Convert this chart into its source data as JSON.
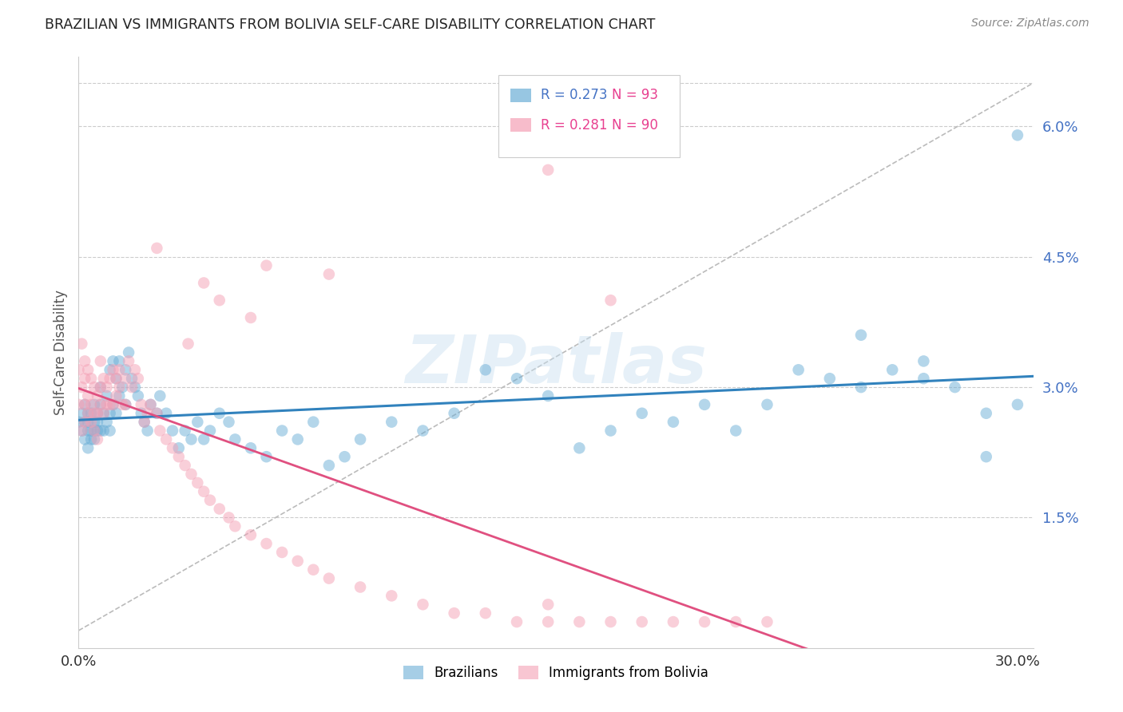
{
  "title": "BRAZILIAN VS IMMIGRANTS FROM BOLIVIA SELF-CARE DISABILITY CORRELATION CHART",
  "source": "Source: ZipAtlas.com",
  "ylabel": "Self-Care Disability",
  "legend_r1": "R = 0.273",
  "legend_n1": "N = 93",
  "legend_r2": "R = 0.281",
  "legend_n2": "N = 90",
  "legend_label1": "Brazilians",
  "legend_label2": "Immigrants from Bolivia",
  "color_blue": "#6baed6",
  "color_pink": "#f4a0b5",
  "color_blue_line": "#3182bd",
  "color_pink_line": "#e05080",
  "watermark": "ZIPatlas",
  "brazil_x": [
    0.0,
    0.001,
    0.001,
    0.002,
    0.002,
    0.002,
    0.003,
    0.003,
    0.003,
    0.003,
    0.004,
    0.004,
    0.004,
    0.005,
    0.005,
    0.005,
    0.005,
    0.006,
    0.006,
    0.006,
    0.007,
    0.007,
    0.007,
    0.008,
    0.008,
    0.009,
    0.009,
    0.01,
    0.01,
    0.01,
    0.011,
    0.011,
    0.012,
    0.012,
    0.013,
    0.013,
    0.014,
    0.015,
    0.015,
    0.016,
    0.017,
    0.018,
    0.019,
    0.02,
    0.021,
    0.022,
    0.023,
    0.025,
    0.026,
    0.028,
    0.03,
    0.032,
    0.034,
    0.036,
    0.038,
    0.04,
    0.042,
    0.045,
    0.048,
    0.05,
    0.055,
    0.06,
    0.065,
    0.07,
    0.075,
    0.08,
    0.085,
    0.09,
    0.1,
    0.11,
    0.12,
    0.13,
    0.14,
    0.15,
    0.16,
    0.17,
    0.18,
    0.19,
    0.2,
    0.21,
    0.22,
    0.23,
    0.24,
    0.25,
    0.26,
    0.27,
    0.28,
    0.29,
    0.3,
    0.25,
    0.27,
    0.29,
    0.3
  ],
  "brazil_y": [
    0.026,
    0.025,
    0.027,
    0.026,
    0.024,
    0.028,
    0.026,
    0.025,
    0.027,
    0.023,
    0.025,
    0.027,
    0.024,
    0.026,
    0.025,
    0.028,
    0.024,
    0.027,
    0.025,
    0.026,
    0.028,
    0.025,
    0.03,
    0.027,
    0.025,
    0.029,
    0.026,
    0.032,
    0.027,
    0.025,
    0.033,
    0.028,
    0.031,
    0.027,
    0.033,
    0.029,
    0.03,
    0.032,
    0.028,
    0.034,
    0.031,
    0.03,
    0.029,
    0.027,
    0.026,
    0.025,
    0.028,
    0.027,
    0.029,
    0.027,
    0.025,
    0.023,
    0.025,
    0.024,
    0.026,
    0.024,
    0.025,
    0.027,
    0.026,
    0.024,
    0.023,
    0.022,
    0.025,
    0.024,
    0.026,
    0.021,
    0.022,
    0.024,
    0.026,
    0.025,
    0.027,
    0.032,
    0.031,
    0.029,
    0.023,
    0.025,
    0.027,
    0.026,
    0.028,
    0.025,
    0.028,
    0.032,
    0.031,
    0.03,
    0.032,
    0.031,
    0.03,
    0.027,
    0.059,
    0.036,
    0.033,
    0.022,
    0.028
  ],
  "bolivia_x": [
    0.0,
    0.0,
    0.001,
    0.001,
    0.001,
    0.002,
    0.002,
    0.002,
    0.002,
    0.003,
    0.003,
    0.003,
    0.004,
    0.004,
    0.004,
    0.005,
    0.005,
    0.005,
    0.006,
    0.006,
    0.006,
    0.007,
    0.007,
    0.007,
    0.008,
    0.008,
    0.009,
    0.009,
    0.01,
    0.01,
    0.011,
    0.011,
    0.012,
    0.012,
    0.013,
    0.013,
    0.014,
    0.015,
    0.015,
    0.016,
    0.017,
    0.018,
    0.019,
    0.02,
    0.021,
    0.022,
    0.023,
    0.025,
    0.026,
    0.028,
    0.03,
    0.032,
    0.034,
    0.036,
    0.038,
    0.04,
    0.042,
    0.045,
    0.048,
    0.05,
    0.055,
    0.06,
    0.065,
    0.07,
    0.075,
    0.08,
    0.09,
    0.1,
    0.11,
    0.12,
    0.13,
    0.14,
    0.15,
    0.16,
    0.17,
    0.18,
    0.19,
    0.2,
    0.21,
    0.22,
    0.15,
    0.08,
    0.17,
    0.06,
    0.04,
    0.025,
    0.035,
    0.045,
    0.055,
    0.15
  ],
  "bolivia_y": [
    0.028,
    0.032,
    0.03,
    0.035,
    0.025,
    0.033,
    0.028,
    0.031,
    0.026,
    0.032,
    0.027,
    0.029,
    0.031,
    0.028,
    0.026,
    0.03,
    0.027,
    0.025,
    0.029,
    0.027,
    0.024,
    0.033,
    0.03,
    0.028,
    0.031,
    0.027,
    0.03,
    0.028,
    0.031,
    0.028,
    0.032,
    0.028,
    0.031,
    0.029,
    0.032,
    0.03,
    0.028,
    0.031,
    0.028,
    0.033,
    0.03,
    0.032,
    0.031,
    0.028,
    0.026,
    0.027,
    0.028,
    0.027,
    0.025,
    0.024,
    0.023,
    0.022,
    0.021,
    0.02,
    0.019,
    0.018,
    0.017,
    0.016,
    0.015,
    0.014,
    0.013,
    0.012,
    0.011,
    0.01,
    0.009,
    0.008,
    0.007,
    0.006,
    0.005,
    0.004,
    0.004,
    0.003,
    0.003,
    0.003,
    0.003,
    0.003,
    0.003,
    0.003,
    0.003,
    0.003,
    0.005,
    0.043,
    0.04,
    0.044,
    0.042,
    0.046,
    0.035,
    0.04,
    0.038,
    0.055
  ],
  "xlim": [
    0.0,
    0.305
  ],
  "ylim": [
    0.0,
    0.068
  ],
  "ytick_vals": [
    0.015,
    0.03,
    0.045,
    0.06
  ],
  "ytick_labels": [
    "1.5%",
    "3.0%",
    "4.5%",
    "6.0%"
  ],
  "xtick_vals": [
    0.0,
    0.3
  ],
  "xtick_labels": [
    "0.0%",
    "30.0%"
  ]
}
